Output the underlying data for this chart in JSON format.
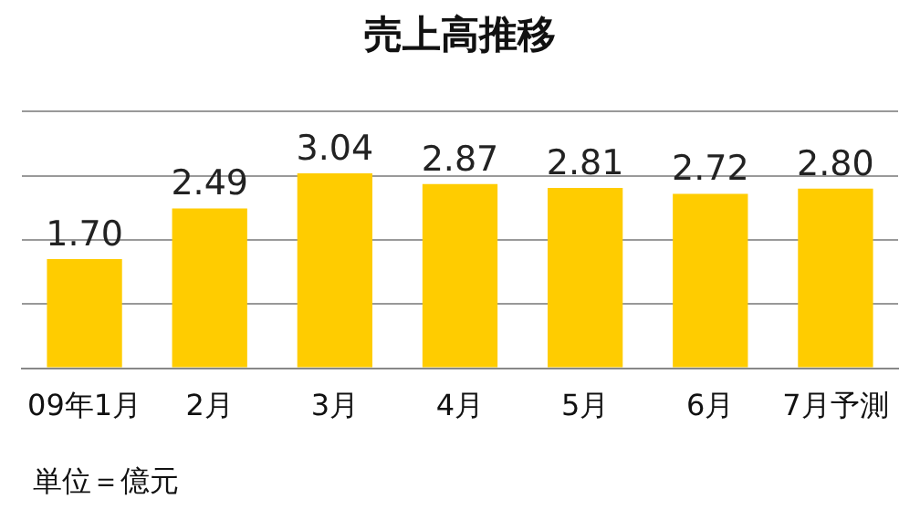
{
  "chart_data": {
    "type": "bar",
    "title": "売上高推移",
    "categories": [
      "09年1月",
      "2月",
      "3月",
      "4月",
      "5月",
      "6月",
      "7月予測"
    ],
    "values": [
      1.7,
      2.49,
      3.04,
      2.87,
      2.81,
      2.72,
      2.8
    ],
    "value_labels": [
      "1.70",
      "2.49",
      "3.04",
      "2.87",
      "2.81",
      "2.72",
      "2.80"
    ],
    "color": "#ffcc00",
    "ylim": [
      0,
      4
    ],
    "yticks": [
      {
        "value": 0,
        "label": null
      },
      {
        "value": 1,
        "label": null
      },
      {
        "value": 2,
        "label": null
      },
      {
        "value": 3,
        "label": null
      },
      {
        "value": 4,
        "label": null
      }
    ],
    "tick_labels": "x",
    "grid": "y",
    "legend": false,
    "annotations": [
      "単位＝億元"
    ]
  }
}
